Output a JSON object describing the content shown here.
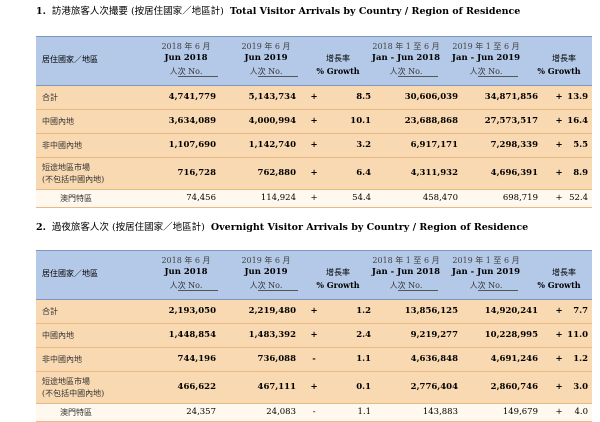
{
  "sections": [
    {
      "number": "1.",
      "title_zh": "訪港旅客人次撮要 (按居住國家／地區計)",
      "title_en": "Total Visitor Arrivals by Country / Region of Residence",
      "header": {
        "region_label": "居住國家／地區",
        "col1_zh": "2018 年 6 月",
        "col1_en": "Jun 2018",
        "col2_zh": "2019 年 6 月",
        "col2_en": "Jun 2019",
        "growth_zh": "增長率",
        "growth_en": "% Growth",
        "col3_zh": "2018 年 1 至 6 月",
        "col3_en": "Jan - Jun 2018",
        "col4_zh": "2019 年 1 至 6 月",
        "col4_en": "Jan - Jun 2019",
        "unit": "人次  No.",
        "unit_zh": "人次",
        "unit_en": "No."
      },
      "rows": [
        {
          "label": "合計",
          "label2": "",
          "v1": "4,741,779",
          "v2": "5,143,734",
          "s1": "+",
          "g1": "8.5",
          "v3": "30,606,039",
          "v4": "34,871,856",
          "s2": "+",
          "g2": "13.9"
        },
        {
          "label": "中國內地",
          "label2": "",
          "v1": "3,634,089",
          "v2": "4,000,994",
          "s1": "+",
          "g1": "10.1",
          "v3": "23,688,868",
          "v4": "27,573,517",
          "s2": "+",
          "g2": "16.4"
        },
        {
          "label": "非中國內地",
          "label2": "",
          "v1": "1,107,690",
          "v2": "1,142,740",
          "s1": "+",
          "g1": "3.2",
          "v3": "6,917,171",
          "v4": "7,298,339",
          "s2": "+",
          "g2": "5.5"
        },
        {
          "label": "短途地區市場",
          "label2": "(不包括中國內地)",
          "v1": "716,728",
          "v2": "762,880",
          "s1": "+",
          "g1": "6.4",
          "v3": "4,311,932",
          "v4": "4,696,391",
          "s2": "+",
          "g2": "8.9"
        },
        {
          "label": "澳門特區",
          "label2": "",
          "v1": "74,456",
          "v2": "114,924",
          "s1": "+",
          "g1": "54.4",
          "v3": "458,470",
          "v4": "698,719",
          "s2": "+",
          "g2": "52.4"
        }
      ]
    },
    {
      "number": "2.",
      "title_zh": "過夜旅客人次 (按居住國家／地區計)",
      "title_en": "Overnight Visitor Arrivals by Country / Region of Residence",
      "header": {
        "region_label": "居住國家／地區",
        "col1_zh": "2018 年 6 月",
        "col1_en": "Jun 2018",
        "col2_zh": "2019 年 6 月",
        "col2_en": "Jun 2019",
        "growth_zh": "增長率",
        "growth_en": "% Growth",
        "col3_zh": "2018 年 1 至 6 月",
        "col3_en": "Jan - Jun 2018",
        "col4_zh": "2019 年 1 至 6 月",
        "col4_en": "Jan - Jun 2019",
        "unit_zh": "人次",
        "unit_en": "No."
      },
      "rows": [
        {
          "label": "合計",
          "label2": "",
          "v1": "2,193,050",
          "v2": "2,219,480",
          "s1": "+",
          "g1": "1.2",
          "v3": "13,856,125",
          "v4": "14,920,241",
          "s2": "+",
          "g2": "7.7"
        },
        {
          "label": "中國內地",
          "label2": "",
          "v1": "1,448,854",
          "v2": "1,483,392",
          "s1": "+",
          "g1": "2.4",
          "v3": "9,219,277",
          "v4": "10,228,995",
          "s2": "+",
          "g2": "11.0"
        },
        {
          "label": "非中國內地",
          "label2": "",
          "v1": "744,196",
          "v2": "736,088",
          "s1": "-",
          "g1": "1.1",
          "v3": "4,636,848",
          "v4": "4,691,246",
          "s2": "+",
          "g2": "1.2"
        },
        {
          "label": "短途地區市場",
          "label2": "(不包括中國內地)",
          "v1": "466,622",
          "v2": "467,111",
          "s1": "+",
          "g1": "0.1",
          "v3": "2,776,404",
          "v4": "2,860,746",
          "s2": "+",
          "g2": "3.0"
        },
        {
          "label": "澳門特區",
          "label2": "",
          "v1": "24,357",
          "v2": "24,083",
          "s1": "-",
          "g1": "1.1",
          "v3": "143,883",
          "v4": "149,679",
          "s2": "+",
          "g2": "4.0"
        }
      ]
    }
  ]
}
